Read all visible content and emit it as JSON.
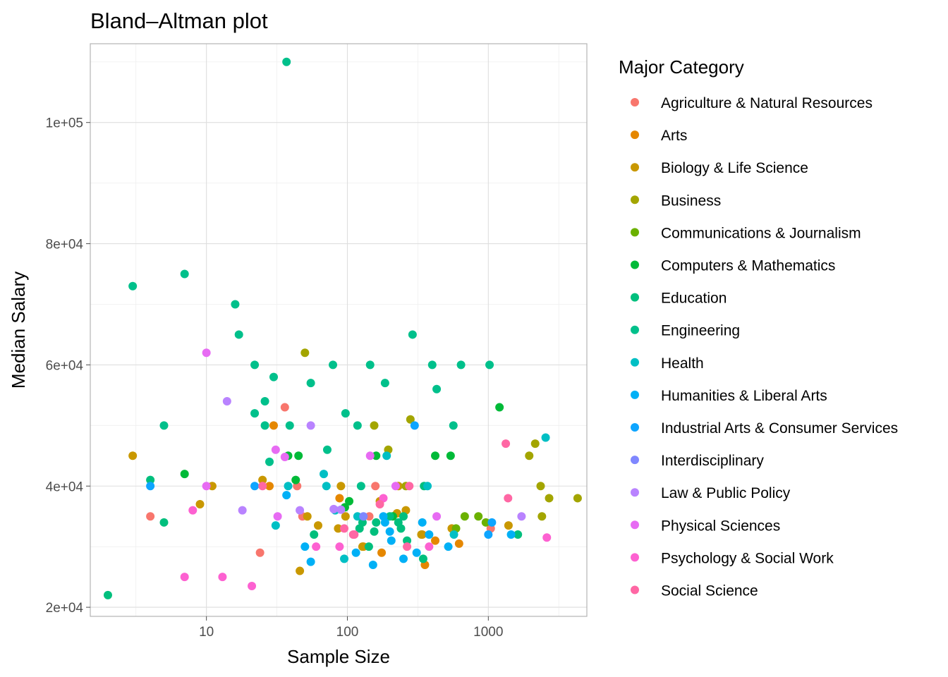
{
  "chart_data": {
    "type": "scatter",
    "title": "Bland–Altman plot",
    "xlabel": "Sample Size",
    "ylabel": "Median Salary",
    "x_scale": "log10",
    "xlim": [
      1.5,
      5000
    ],
    "ylim": [
      18500,
      113000
    ],
    "x_ticks": [
      {
        "value": 10,
        "label": "10"
      },
      {
        "value": 100,
        "label": "100"
      },
      {
        "value": 1000,
        "label": "1000"
      }
    ],
    "y_ticks": [
      {
        "value": 20000,
        "label": "2e+04"
      },
      {
        "value": 40000,
        "label": "4e+04"
      },
      {
        "value": 60000,
        "label": "6e+04"
      },
      {
        "value": 80000,
        "label": "8e+04"
      },
      {
        "value": 100000,
        "label": "1e+05"
      }
    ],
    "grid": true,
    "legend": {
      "title": "Major Category",
      "position": "right"
    },
    "series": [
      {
        "name": "Agriculture & Natural Resources",
        "color": "#F8766D",
        "points": [
          [
            4,
            35000
          ],
          [
            36,
            53000
          ],
          [
            44,
            40000
          ],
          [
            48,
            35000
          ],
          [
            143,
            35000
          ],
          [
            158,
            40000
          ],
          [
            1040,
            33000
          ],
          [
            24,
            29000
          ]
        ]
      },
      {
        "name": "Arts",
        "color": "#E58700",
        "points": [
          [
            30,
            50000
          ],
          [
            28,
            40000
          ],
          [
            175,
            29000
          ],
          [
            355,
            27000
          ],
          [
            420,
            31000
          ],
          [
            620,
            30500
          ],
          [
            130,
            30000
          ],
          [
            88,
            38000
          ],
          [
            340,
            32000
          ]
        ]
      },
      {
        "name": "Biology & Life Science",
        "color": "#C99800",
        "points": [
          [
            3,
            45000
          ],
          [
            9,
            37000
          ],
          [
            11,
            40000
          ],
          [
            25,
            41000
          ],
          [
            46,
            26000
          ],
          [
            52,
            35000
          ],
          [
            62,
            33500
          ],
          [
            86,
            33000
          ],
          [
            90,
            40000
          ],
          [
            97,
            35000
          ],
          [
            128,
            30000
          ],
          [
            170,
            37500
          ],
          [
            225,
            35500
          ],
          [
            260,
            36000
          ],
          [
            1390,
            33500
          ],
          [
            550,
            33000
          ],
          [
            335,
            32000
          ],
          [
            230,
            40000
          ]
        ]
      },
      {
        "name": "Business",
        "color": "#A3A500",
        "points": [
          [
            50,
            62000
          ],
          [
            155,
            50000
          ],
          [
            195,
            46000
          ],
          [
            280,
            51000
          ],
          [
            1950,
            45000
          ],
          [
            2150,
            47000
          ],
          [
            2350,
            40000
          ],
          [
            2700,
            38000
          ],
          [
            4300,
            38000
          ],
          [
            2400,
            35000
          ],
          [
            260,
            40000
          ]
        ]
      },
      {
        "name": "Communications & Journalism",
        "color": "#6BB100",
        "points": [
          [
            680,
            35000
          ],
          [
            850,
            35000
          ],
          [
            590,
            33000
          ],
          [
            960,
            34000
          ]
        ]
      },
      {
        "name": "Computers & Mathematics",
        "color": "#00BA38",
        "points": [
          [
            7,
            42000
          ],
          [
            38,
            45000
          ],
          [
            45,
            45000
          ],
          [
            43,
            41000
          ],
          [
            96,
            36500
          ],
          [
            103,
            37500
          ],
          [
            160,
            45000
          ],
          [
            420,
            45000
          ],
          [
            540,
            45000
          ],
          [
            1200,
            53000
          ],
          [
            210,
            35000
          ]
        ]
      },
      {
        "name": "Education",
        "color": "#00BF7D",
        "points": [
          [
            2,
            22000
          ],
          [
            4,
            41000
          ],
          [
            5,
            34000
          ],
          [
            58,
            32000
          ],
          [
            122,
            33000
          ],
          [
            128,
            34000
          ],
          [
            142,
            30000
          ],
          [
            155,
            32500
          ],
          [
            160,
            34000
          ],
          [
            200,
            35000
          ],
          [
            240,
            33000
          ],
          [
            250,
            35000
          ],
          [
            265,
            31000
          ],
          [
            345,
            28000
          ],
          [
            1620,
            32000
          ],
          [
            350,
            40000
          ],
          [
            230,
            34000
          ]
        ]
      },
      {
        "name": "Engineering",
        "color": "#00C08B",
        "points": [
          [
            3,
            73000
          ],
          [
            5,
            50000
          ],
          [
            7,
            75000
          ],
          [
            16,
            70000
          ],
          [
            17,
            65000
          ],
          [
            22,
            60000
          ],
          [
            22,
            52000
          ],
          [
            26,
            54000
          ],
          [
            26,
            50000
          ],
          [
            30,
            58000
          ],
          [
            37,
            110000
          ],
          [
            39,
            50000
          ],
          [
            55,
            57000
          ],
          [
            72,
            46000
          ],
          [
            79,
            60000
          ],
          [
            97,
            52000
          ],
          [
            118,
            50000
          ],
          [
            145,
            60000
          ],
          [
            185,
            57000
          ],
          [
            290,
            65000
          ],
          [
            400,
            60000
          ],
          [
            430,
            56000
          ],
          [
            565,
            50000
          ],
          [
            640,
            60000
          ],
          [
            1020,
            60000
          ],
          [
            28,
            44000
          ],
          [
            125,
            40000
          ]
        ]
      },
      {
        "name": "Health",
        "color": "#00BFC4",
        "points": [
          [
            31,
            33500
          ],
          [
            38,
            40000
          ],
          [
            68,
            42000
          ],
          [
            71,
            40000
          ],
          [
            82,
            36000
          ],
          [
            95,
            28000
          ],
          [
            118,
            35000
          ],
          [
            190,
            45000
          ],
          [
            370,
            40000
          ],
          [
            2550,
            48000
          ],
          [
            570,
            32000
          ]
        ]
      },
      {
        "name": "Humanities & Liberal Arts",
        "color": "#00B0F6",
        "points": [
          [
            37,
            38500
          ],
          [
            50,
            30000
          ],
          [
            55,
            27500
          ],
          [
            115,
            29000
          ],
          [
            152,
            27000
          ],
          [
            180,
            35000
          ],
          [
            200,
            32500
          ],
          [
            205,
            31000
          ],
          [
            250,
            28000
          ],
          [
            310,
            29000
          ],
          [
            340,
            34000
          ],
          [
            380,
            32000
          ],
          [
            520,
            30000
          ],
          [
            1450,
            32000
          ],
          [
            185,
            34000
          ]
        ]
      },
      {
        "name": "Industrial Arts & Consumer Services",
        "color": "#0EA5FF",
        "points": [
          [
            4,
            40000
          ],
          [
            22,
            40000
          ],
          [
            300,
            50000
          ],
          [
            1000,
            32000
          ],
          [
            1060,
            34000
          ]
        ]
      },
      {
        "name": "Interdisciplinary",
        "color": "#7F87FF",
        "points": [
          [
            130,
            35000
          ]
        ]
      },
      {
        "name": "Law & Public Policy",
        "color": "#B983FF",
        "points": [
          [
            14,
            54000
          ],
          [
            18,
            36000
          ],
          [
            55,
            50000
          ],
          [
            46,
            36000
          ],
          [
            80,
            36200
          ],
          [
            90,
            36100
          ],
          [
            1720,
            35000
          ]
        ]
      },
      {
        "name": "Physical Sciences",
        "color": "#E76BF3",
        "points": [
          [
            10,
            62000
          ],
          [
            10,
            40000
          ],
          [
            31,
            46000
          ],
          [
            32,
            35000
          ],
          [
            36,
            44800
          ],
          [
            145,
            45000
          ],
          [
            430,
            35000
          ],
          [
            220,
            40000
          ]
        ]
      },
      {
        "name": "Psychology & Social Work",
        "color": "#FD61D1",
        "points": [
          [
            7,
            25000
          ],
          [
            8,
            36000
          ],
          [
            13,
            25000
          ],
          [
            21,
            23500
          ],
          [
            60,
            30000
          ],
          [
            88,
            30000
          ],
          [
            180,
            38000
          ],
          [
            380,
            30000
          ],
          [
            2600,
            31500
          ]
        ]
      },
      {
        "name": "Social Science",
        "color": "#FF67A4",
        "points": [
          [
            25,
            40000
          ],
          [
            95,
            33000
          ],
          [
            110,
            32000
          ],
          [
            112,
            32000
          ],
          [
            265,
            30000
          ],
          [
            275,
            40000
          ],
          [
            1330,
            47000
          ],
          [
            1380,
            38000
          ],
          [
            170,
            37000
          ]
        ]
      }
    ]
  }
}
